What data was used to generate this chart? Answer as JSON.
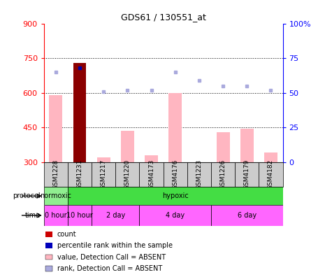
{
  "title": "GDS61 / 130551_at",
  "samples": [
    "GSM1228",
    "GSM1231",
    "GSM1217",
    "GSM1220",
    "GSM4173",
    "GSM4176",
    "GSM1223",
    "GSM1226",
    "GSM4179",
    "GSM4182"
  ],
  "bar_values": [
    590,
    730,
    320,
    435,
    330,
    600,
    300,
    430,
    445,
    340
  ],
  "rank_dots": [
    65,
    68,
    51,
    52,
    52,
    65,
    59,
    55,
    55,
    52
  ],
  "count_bar_index": 1,
  "ylim_left": [
    300,
    900
  ],
  "ylim_right": [
    0,
    100
  ],
  "yticks_left": [
    300,
    450,
    600,
    750,
    900
  ],
  "yticks_right": [
    0,
    25,
    50,
    75,
    100
  ],
  "hlines": [
    750,
    600,
    450
  ],
  "bar_color_absent": "#FFB6C1",
  "bar_color_count": "#8B0000",
  "dot_color_absent": "#AAAADD",
  "dot_color_rank": "#0000AA",
  "protocol_normoxic_color": "#90EE90",
  "protocol_hypoxic_color": "#44DD44",
  "time_color": "#FF66FF",
  "time_alt_color": "#DD88DD",
  "legend_items": [
    {
      "label": "count",
      "color": "#CC0000"
    },
    {
      "label": "percentile rank within the sample",
      "color": "#0000BB"
    },
    {
      "label": "value, Detection Call = ABSENT",
      "color": "#FFB6C1"
    },
    {
      "label": "rank, Detection Call = ABSENT",
      "color": "#AAAADD"
    }
  ],
  "xticklabel_bg": "#CCCCCC",
  "spine_color": "#000000",
  "figure_bg": "#FFFFFF"
}
